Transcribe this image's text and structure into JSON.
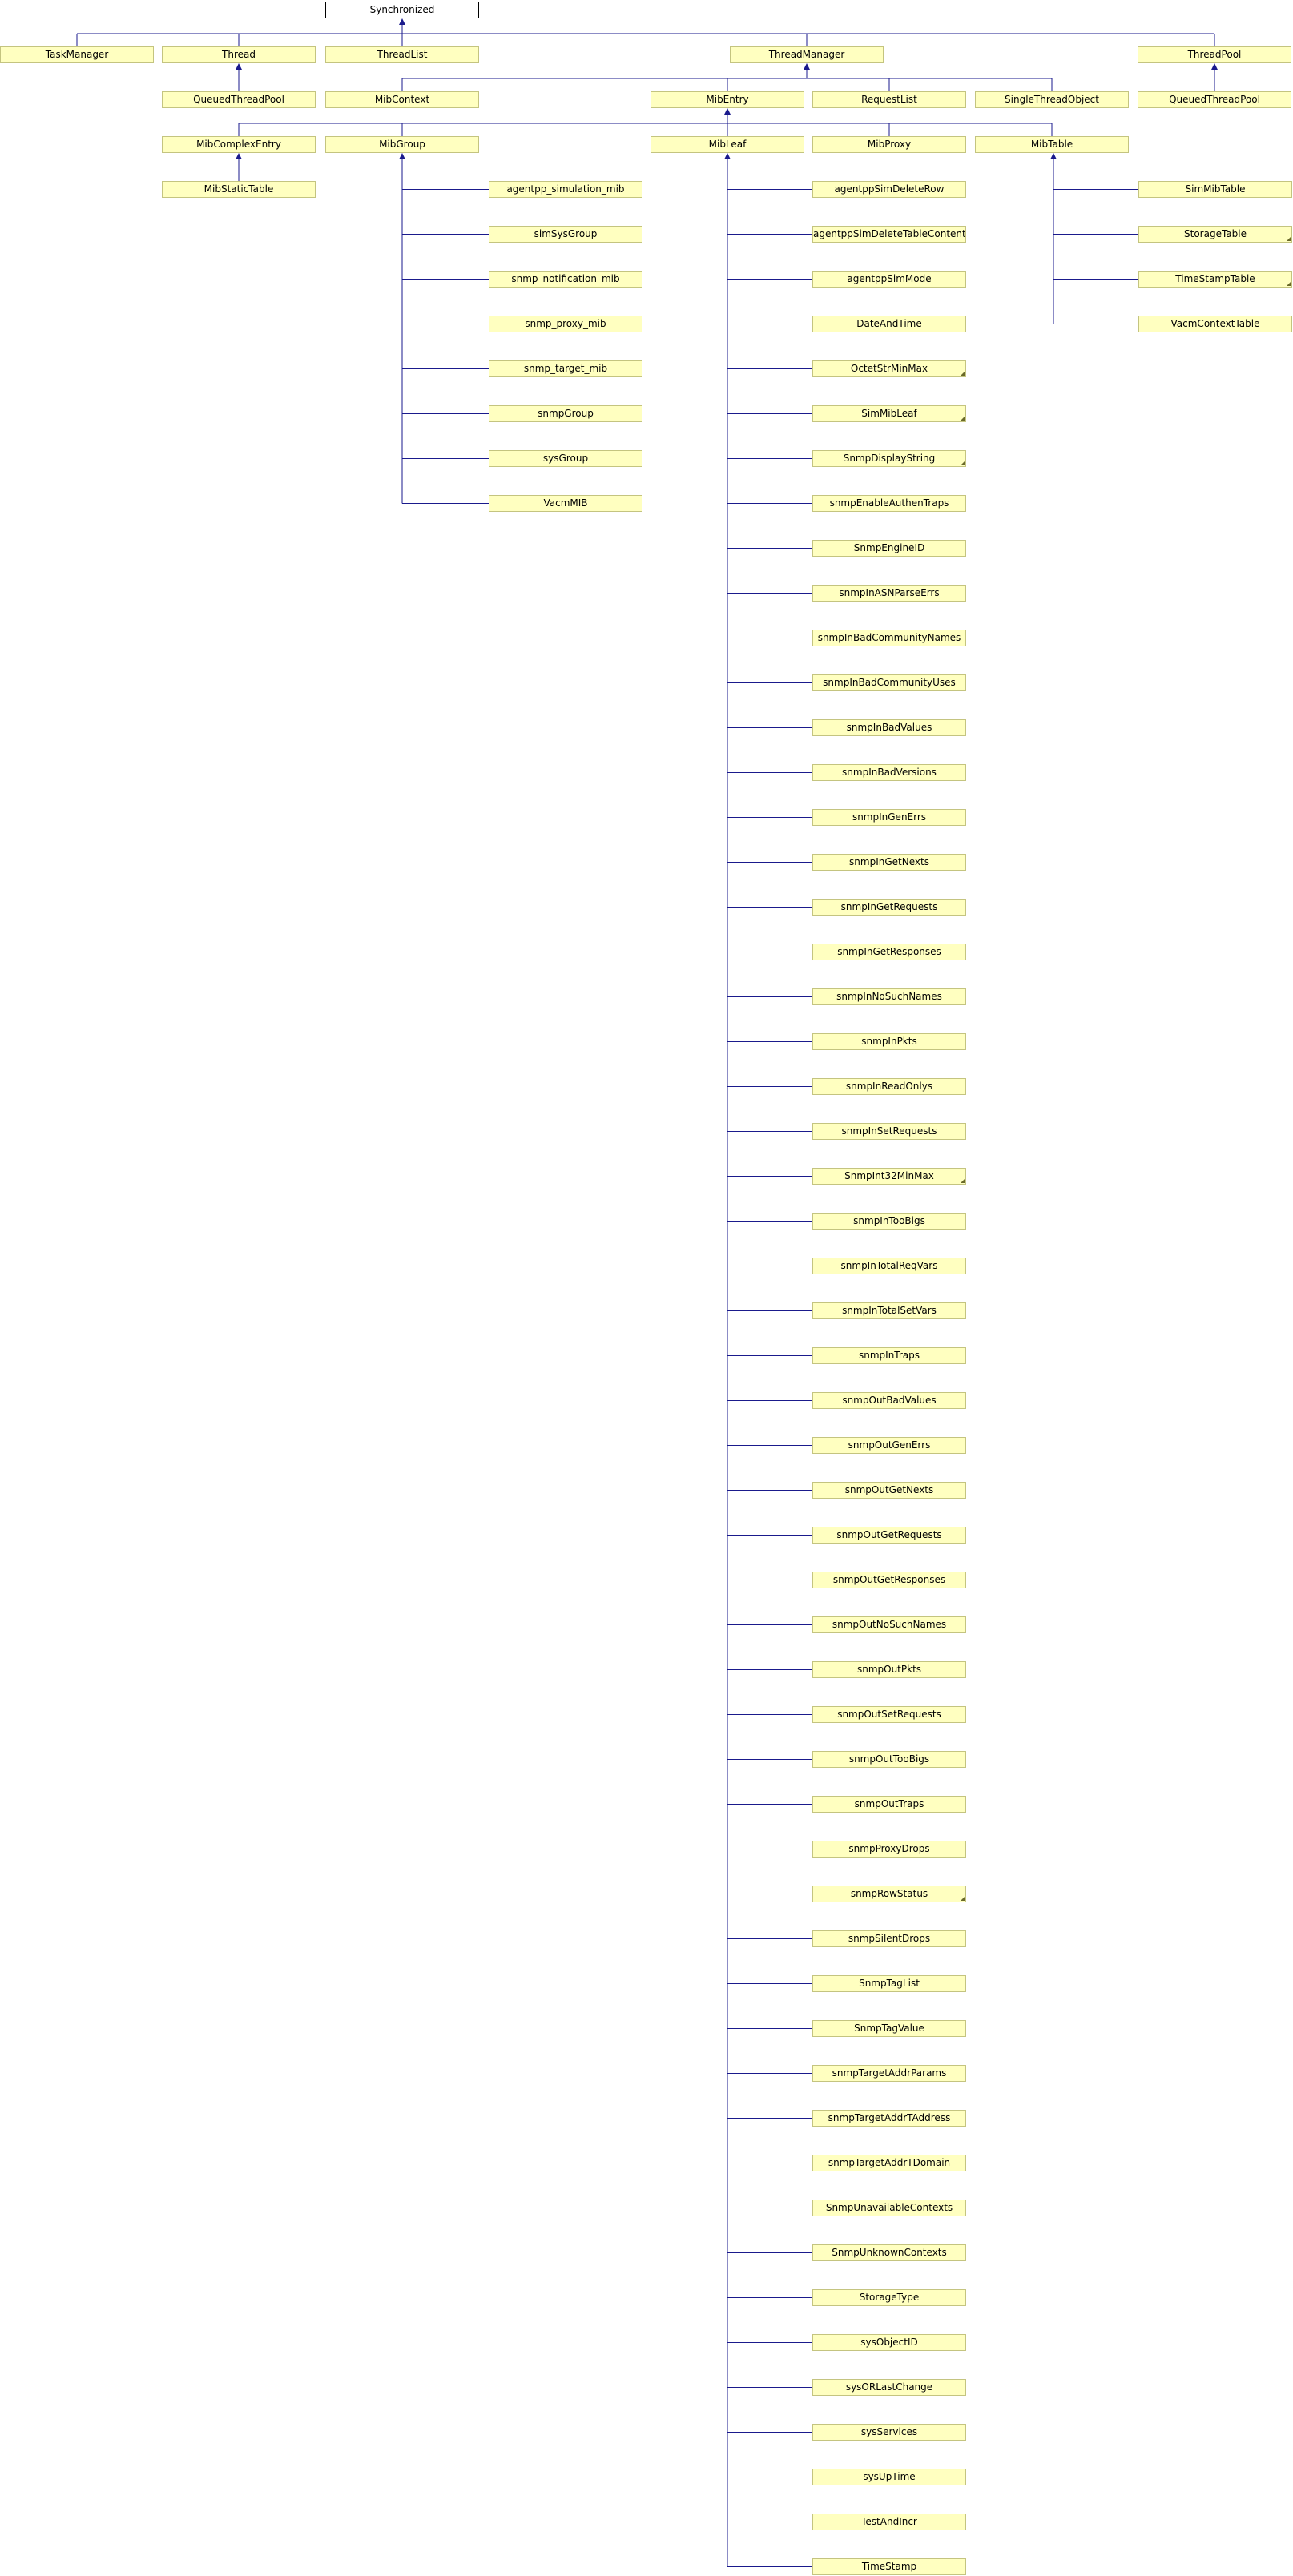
{
  "colors": {
    "edge": "#1a1a8c",
    "node_fill": "#ffffc0",
    "node_border": "#c4c480",
    "root_fill": "#ffffff",
    "root_border": "#000000"
  },
  "nodes": {
    "synchronized": "Synchronized",
    "task_manager": "TaskManager",
    "thread": "Thread",
    "thread_list": "ThreadList",
    "thread_manager": "ThreadManager",
    "thread_pool": "ThreadPool",
    "queued_thread_pool_a": "QueuedThreadPool",
    "mib_context": "MibContext",
    "mib_entry": "MibEntry",
    "request_list": "RequestList",
    "single_thread_object": "SingleThreadObject",
    "queued_thread_pool_b": "QueuedThreadPool",
    "mib_complex_entry": "MibComplexEntry",
    "mib_group": "MibGroup",
    "mib_leaf": "MibLeaf",
    "mib_proxy": "MibProxy",
    "mib_table": "MibTable",
    "mib_static_table": "MibStaticTable",
    "mib_group_children": [
      "agentpp_simulation_mib",
      "simSysGroup",
      "snmp_notification_mib",
      "snmp_proxy_mib",
      "snmp_target_mib",
      "snmpGroup",
      "sysGroup",
      "VacmMIB"
    ],
    "mib_table_children": [
      "SimMibTable",
      "StorageTable",
      "TimeStampTable",
      "VacmContextTable"
    ],
    "mib_leaf_children": [
      "agentppSimDeleteRow",
      "agentppSimDeleteTableContents",
      "agentppSimMode",
      "DateAndTime",
      "OctetStrMinMax",
      "SimMibLeaf",
      "SnmpDisplayString",
      "snmpEnableAuthenTraps",
      "SnmpEngineID",
      "snmpInASNParseErrs",
      "snmpInBadCommunityNames",
      "snmpInBadCommunityUses",
      "snmpInBadValues",
      "snmpInBadVersions",
      "snmpInGenErrs",
      "snmpInGetNexts",
      "snmpInGetRequests",
      "snmpInGetResponses",
      "snmpInNoSuchNames",
      "snmpInPkts",
      "snmpInReadOnlys",
      "snmpInSetRequests",
      "SnmpInt32MinMax",
      "snmpInTooBigs",
      "snmpInTotalReqVars",
      "snmpInTotalSetVars",
      "snmpInTraps",
      "snmpOutBadValues",
      "snmpOutGenErrs",
      "snmpOutGetNexts",
      "snmpOutGetRequests",
      "snmpOutGetResponses",
      "snmpOutNoSuchNames",
      "snmpOutPkts",
      "snmpOutSetRequests",
      "snmpOutTooBigs",
      "snmpOutTraps",
      "snmpProxyDrops",
      "snmpRowStatus",
      "snmpSilentDrops",
      "SnmpTagList",
      "SnmpTagValue",
      "snmpTargetAddrParams",
      "snmpTargetAddrTAddress",
      "snmpTargetAddrTDomain",
      "SnmpUnavailableContexts",
      "SnmpUnknownContexts",
      "StorageType",
      "sysObjectID",
      "sysORLastChange",
      "sysServices",
      "sysUpTime",
      "TestAndIncr",
      "TimeStamp"
    ]
  }
}
